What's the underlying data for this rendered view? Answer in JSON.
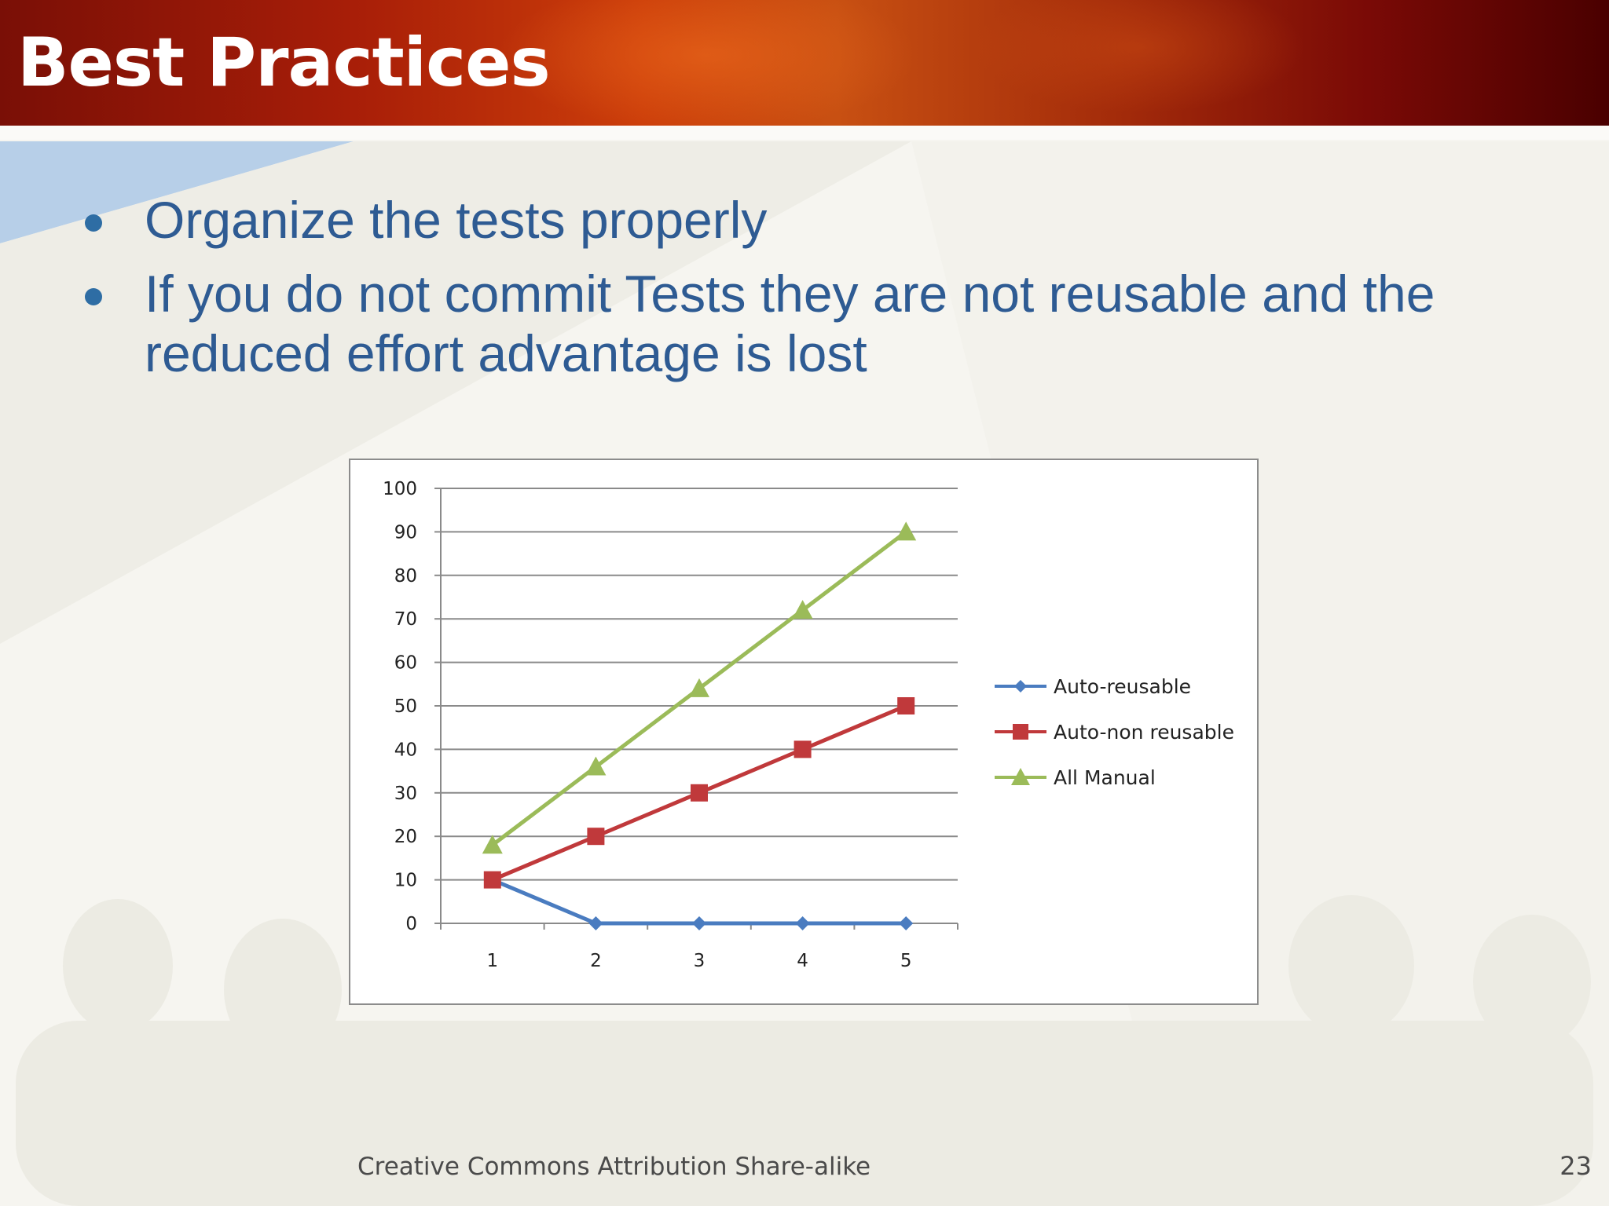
{
  "slide": {
    "title": "Best Practices",
    "bullets": [
      "Organize the tests properly",
      "If you do not commit Tests they are not reusable and the reduced effort advantage is lost"
    ],
    "footer": "Creative Commons Attribution Share-alike",
    "page_number": "23"
  },
  "colors": {
    "header": "#a81e08",
    "text_blue": "#2e5b93",
    "series_blue": "#4a7cc0",
    "series_red": "#c0393b",
    "series_green": "#9bbb59"
  },
  "chart_data": {
    "type": "line",
    "categories": [
      "1",
      "2",
      "3",
      "4",
      "5"
    ],
    "ylim": [
      0,
      100
    ],
    "yticks": [
      "0",
      "10",
      "20",
      "30",
      "40",
      "50",
      "60",
      "70",
      "80",
      "90",
      "100"
    ],
    "grid": true,
    "legend": "right",
    "series": [
      {
        "name": "Auto-reusable",
        "color": "#4a7cc0",
        "marker": "diamond",
        "values": [
          10,
          0,
          0,
          0,
          0
        ]
      },
      {
        "name": "Auto-non reusable",
        "color": "#c0393b",
        "marker": "square",
        "values": [
          10,
          20,
          30,
          40,
          50
        ]
      },
      {
        "name": "All Manual",
        "color": "#9bbb59",
        "marker": "triangle",
        "values": [
          18,
          36,
          54,
          72,
          90
        ]
      }
    ]
  }
}
